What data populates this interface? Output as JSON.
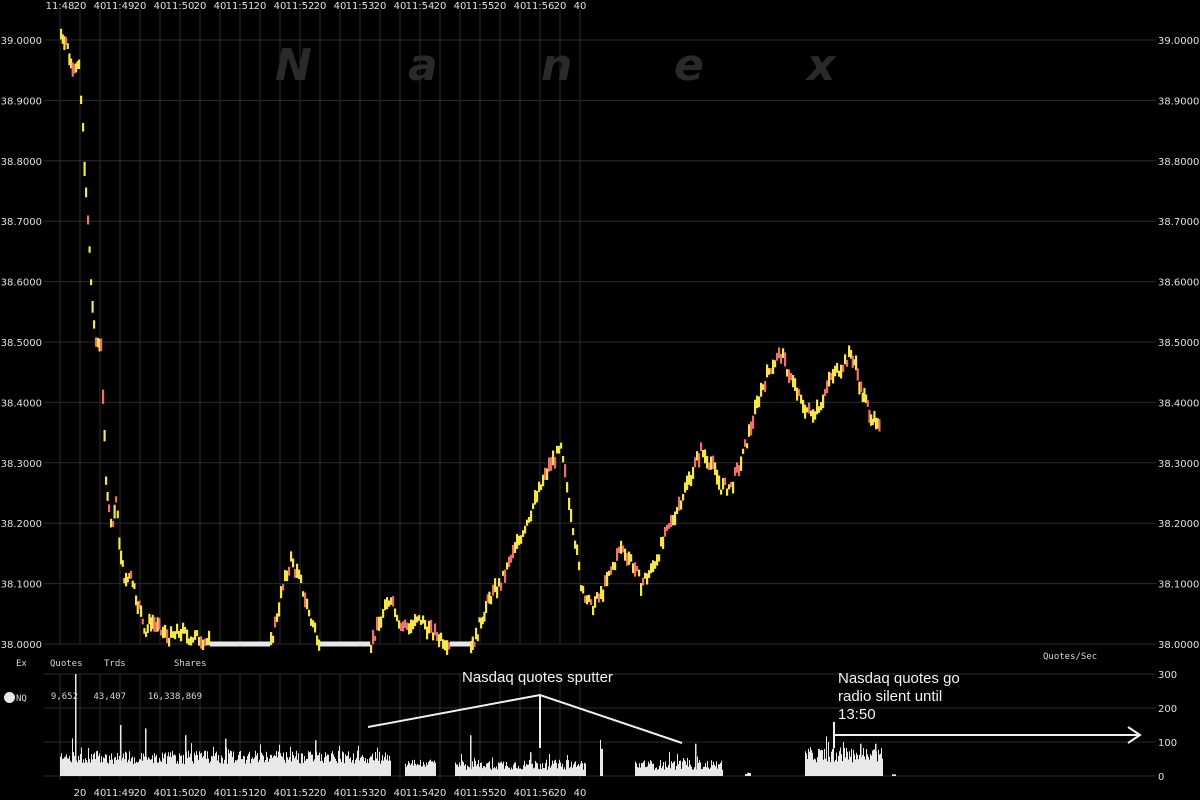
{
  "chart_data": [
    {
      "type": "line",
      "watermark": [
        "N",
        "a",
        "n",
        "e",
        "x"
      ],
      "x_top_tick_labels": [
        "11:48",
        "20",
        "40",
        "11:49",
        "20",
        "40",
        "11:50",
        "20",
        "40",
        "11:51",
        "20",
        "40",
        "11:52",
        "20",
        "40",
        "11:53",
        "20",
        "40",
        "11:54",
        "20",
        "40",
        "11:55",
        "20",
        "40",
        "11:56",
        "20",
        "40"
      ],
      "ylim": [
        38.0,
        39.0
      ],
      "y_tick_labels": [
        "39.0000",
        "38.9000",
        "38.8000",
        "38.7000",
        "38.6000",
        "38.5000",
        "38.4000",
        "38.3000",
        "38.2000",
        "38.1000",
        "38.0000"
      ],
      "grid": true,
      "series": [
        {
          "color_primary": "#f5e64a",
          "color_secondary": "#f07070",
          "color_flat": "#e8e8e8",
          "x_seconds": [
            0,
            5,
            10,
            15,
            18,
            22,
            25,
            27,
            30,
            33,
            35,
            37,
            40,
            42,
            45,
            48,
            52,
            55,
            60,
            65,
            70,
            75,
            80,
            85,
            90,
            95,
            100,
            110,
            120,
            130,
            140,
            150,
            160,
            170,
            180,
            190,
            200,
            210,
            220,
            230,
            240,
            250,
            260,
            270,
            280,
            290,
            300,
            310,
            320,
            330,
            340,
            350,
            360,
            370,
            380,
            390,
            400,
            410,
            415,
            420,
            425,
            430,
            440,
            450,
            460,
            470,
            480,
            490,
            500,
            510,
            520,
            530,
            540,
            550,
            560,
            570,
            580,
            590,
            600,
            610,
            620,
            630,
            640,
            650,
            660,
            670,
            680,
            690,
            700,
            710,
            720,
            730,
            740,
            750,
            760,
            770,
            780,
            790,
            795,
            800,
            805,
            810,
            815,
            820
          ],
          "values": [
            39.01,
            39.0,
            38.96,
            38.96,
            38.95,
            38.85,
            38.74,
            38.7,
            38.6,
            38.52,
            38.5,
            38.5,
            38.5,
            38.4,
            38.28,
            38.22,
            38.2,
            38.24,
            38.14,
            38.1,
            38.12,
            38.08,
            38.05,
            38.02,
            38.04,
            38.03,
            38.02,
            38.01,
            38.02,
            38.01,
            38.01,
            38.0,
            38.0,
            38.0,
            38.0,
            38.0,
            38.0,
            38.0,
            38.08,
            38.14,
            38.1,
            38.04,
            38.0,
            38.0,
            38.0,
            38.0,
            38.0,
            38.0,
            38.04,
            38.08,
            38.03,
            38.03,
            38.04,
            38.02,
            38.01,
            38.0,
            38.0,
            38.0,
            38.01,
            38.04,
            38.06,
            38.08,
            38.1,
            38.14,
            38.18,
            38.22,
            38.26,
            38.3,
            38.32,
            38.22,
            38.1,
            38.06,
            38.08,
            38.12,
            38.16,
            38.14,
            38.1,
            38.12,
            38.16,
            38.2,
            38.24,
            38.28,
            38.32,
            38.3,
            38.26,
            38.26,
            38.3,
            38.36,
            38.42,
            38.46,
            38.48,
            38.44,
            38.4,
            38.38,
            38.4,
            38.44,
            38.46,
            38.48,
            38.46,
            38.42,
            38.4,
            38.38,
            38.36,
            38.35
          ]
        }
      ]
    },
    {
      "type": "bar",
      "title": "Quotes/Sec",
      "ylim": [
        0,
        300
      ],
      "y_tick_labels": [
        "300",
        "200",
        "100",
        "0"
      ],
      "x_bottom_tick_labels": [
        "20",
        "40",
        "11:49",
        "20",
        "40",
        "11:50",
        "20",
        "40",
        "11:51",
        "20",
        "40",
        "11:52",
        "20",
        "40",
        "11:53",
        "20",
        "40",
        "11:54",
        "20",
        "40",
        "11:55",
        "20",
        "40",
        "11:56",
        "20",
        "40"
      ],
      "bar_color": "#e8e8e8",
      "segments": [
        {
          "start_s": 0,
          "end_s": 330,
          "base": 35,
          "spread": 40,
          "spikes": [
            [
              15,
              300
            ],
            [
              60,
              150
            ],
            [
              85,
              140
            ],
            [
              125,
              120
            ],
            [
              165,
              110
            ],
            [
              255,
              105
            ]
          ]
        },
        {
          "start_s": 345,
          "end_s": 375,
          "base": 25,
          "spread": 25,
          "spikes": []
        },
        {
          "start_s": 395,
          "end_s": 525,
          "base": 18,
          "spread": 30,
          "spikes": [
            [
              410,
              120
            ],
            [
              470,
              70
            ]
          ]
        },
        {
          "start_s": 540,
          "end_s": 542,
          "base": 80,
          "spread": 0,
          "spikes": []
        },
        {
          "start_s": 575,
          "end_s": 662,
          "base": 18,
          "spread": 30,
          "spikes": [
            [
              635,
              95
            ]
          ]
        },
        {
          "start_s": 685,
          "end_s": 690,
          "base": 5,
          "spread": 5,
          "spikes": []
        },
        {
          "start_s": 745,
          "end_s": 822,
          "base": 40,
          "spread": 45,
          "spikes": [
            [
              800,
              95
            ],
            [
              815,
              95
            ]
          ]
        },
        {
          "start_s": 832,
          "end_s": 835,
          "base": 5,
          "spread": 0,
          "spikes": []
        }
      ]
    }
  ],
  "stats": {
    "headers": [
      "Ex",
      "Quotes",
      "Trds",
      "Shares"
    ],
    "row": [
      "NQ",
      "9,652",
      "43,407",
      "16,338,869"
    ]
  },
  "annotations": {
    "sputter": "Nasdaq quotes sputter",
    "silent_lines": [
      "Nasdaq quotes go",
      "radio silent until",
      "13:50"
    ]
  }
}
